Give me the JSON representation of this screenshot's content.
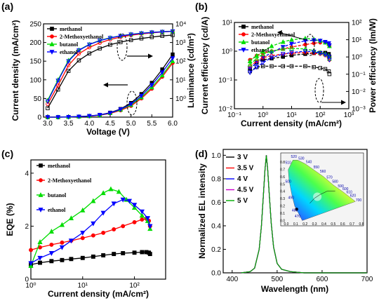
{
  "colors": {
    "methanol": "#000000",
    "2-Methoxyethanol": "#ff0000",
    "butanol": "#00dd00",
    "ethanol": "#0000ff",
    "v35": "#ff0000",
    "v45": "#cc00cc",
    "v5": "#00aa00"
  },
  "chart_data": [
    {
      "panel_label": "(a)",
      "type": "line",
      "xlabel": "Voltage (V)",
      "ylabel": "Current density (mA/cm²)",
      "y2label": "Luminance (cd/m²)",
      "xlim": [
        2.9,
        6.0
      ],
      "ylim": [
        0,
        250
      ],
      "y2lim": [
        0.1,
        10000
      ],
      "y2scale": "log",
      "xticks": [
        "3.0",
        "3.5",
        "4.0",
        "4.5",
        "5.0",
        "5.5",
        "6.0"
      ],
      "yticks": [
        "0",
        "50",
        "100",
        "150",
        "200",
        "250"
      ],
      "y2ticks": [
        "10⁰",
        "10¹",
        "10²",
        "10³",
        "10⁴"
      ],
      "legend": [
        "methanol",
        "2-Methoxyethanol",
        "butanol",
        "ethanol"
      ],
      "current_density": {
        "x": [
          3.0,
          3.25,
          3.5,
          3.75,
          4.0,
          4.25,
          4.5,
          4.75,
          5.0,
          5.25,
          5.5,
          5.75,
          6.0
        ],
        "series": [
          {
            "name": "methanol",
            "values": [
              0,
              0,
              0.5,
              1.5,
              3,
              6,
              12,
              22,
              38,
              62,
              92,
              128,
              168
            ]
          },
          {
            "name": "2-Methoxyethanol",
            "values": [
              0,
              0,
              0.5,
              1.5,
              2.5,
              5,
              10,
              18,
              30,
              50,
              76,
              108,
              145
            ]
          },
          {
            "name": "butanol",
            "values": [
              0,
              0,
              0.5,
              1.5,
              3,
              5.5,
              11,
              20,
              33,
              53,
              80,
              112,
              150
            ]
          },
          {
            "name": "ethanol",
            "values": [
              0,
              0,
              0.5,
              1.5,
              3,
              6,
              11,
              21,
              35,
              57,
              86,
              120,
              158
            ]
          }
        ]
      },
      "luminance": {
        "x": [
          3.0,
          3.25,
          3.5,
          3.75,
          4.0,
          4.25,
          4.5,
          4.75,
          5.0,
          5.25,
          5.5,
          5.75,
          6.0
        ],
        "series": [
          {
            "name": "methanol",
            "values": [
              0.3,
              3,
              30,
              110,
              260,
              480,
              760,
              1050,
              1350,
              1650,
              1950,
              2250,
              2500
            ]
          },
          {
            "name": "2-Methoxyethanol",
            "values": [
              0.5,
              5,
              60,
              250,
              550,
              950,
              1450,
              1950,
              2450,
              2900,
              3300,
              3650,
              3950
            ]
          },
          {
            "name": "butanol",
            "values": [
              0.8,
              10,
              110,
              400,
              800,
              1300,
              1800,
              2300,
              2750,
              3150,
              3500,
              3800,
              4050
            ]
          },
          {
            "name": "ethanol",
            "values": [
              0.7,
              9,
              100,
              380,
              780,
              1250,
              1750,
              2250,
              2700,
              3100,
              3450,
              3750,
              4000
            ]
          }
        ]
      }
    },
    {
      "panel_label": "(b)",
      "type": "line",
      "xscale": "log",
      "xlabel": "Current density (mA/cm²)",
      "ylabel": "Current efficiency (cd/A)",
      "y2label": "Power efficiency (lm/W)",
      "xlim": [
        0.1,
        1000
      ],
      "ylim": [
        0.01,
        10
      ],
      "y2lim": [
        0.001,
        100
      ],
      "xticks": [
        "10⁻¹",
        "10⁰",
        "10¹",
        "10²",
        "10³"
      ],
      "yticks": [
        "10⁻²",
        "10⁻¹",
        "10⁰",
        "10¹"
      ],
      "y2ticks": [
        "10⁻³",
        "10⁻²",
        "10⁻¹",
        "10⁰",
        "10¹",
        "10²"
      ],
      "legend": [
        "methanol",
        "2-Methoxyethanol",
        "butanol",
        "ethanol"
      ],
      "current_efficiency": [
        {
          "name": "methanol",
          "x": [
            0.35,
            0.6,
            1,
            2,
            5,
            10,
            30,
            60,
            100,
            150,
            200,
            210
          ],
          "values": [
            0.25,
            0.4,
            0.5,
            0.56,
            0.64,
            0.72,
            0.8,
            0.86,
            0.88,
            0.88,
            0.8,
            0.65
          ]
        },
        {
          "name": "2-Methoxyethanol",
          "x": [
            0.35,
            0.6,
            1,
            2,
            5,
            10,
            30,
            60,
            100,
            150,
            200,
            210
          ],
          "values": [
            0.5,
            0.7,
            0.85,
            1.0,
            1.2,
            1.4,
            1.7,
            1.9,
            2.0,
            2.0,
            1.8,
            1.5
          ]
        },
        {
          "name": "butanol",
          "x": [
            0.35,
            0.6,
            1,
            2,
            5,
            10,
            30,
            60,
            100,
            150,
            200,
            210
          ],
          "values": [
            0.45,
            0.7,
            1.0,
            1.5,
            2.1,
            2.5,
            2.8,
            2.6,
            2.3,
            2.0,
            1.8,
            1.5
          ]
        },
        {
          "name": "ethanol",
          "x": [
            0.35,
            0.6,
            1,
            2,
            5,
            10,
            30,
            60,
            100,
            150,
            200,
            210
          ],
          "values": [
            0.25,
            0.4,
            0.6,
            0.9,
            1.4,
            1.8,
            2.3,
            2.4,
            2.3,
            2.1,
            1.9,
            1.6
          ]
        }
      ],
      "power_efficiency": [
        {
          "name": "methanol",
          "x": [
            0.35,
            0.6,
            1,
            2,
            5,
            10,
            30,
            60,
            100,
            150,
            200,
            210
          ],
          "values": [
            0.2,
            0.28,
            0.3,
            0.3,
            0.3,
            0.3,
            0.3,
            0.28,
            0.26,
            0.24,
            0.2,
            0.16
          ]
        },
        {
          "name": "2-Methoxyethanol",
          "x": [
            0.35,
            0.6,
            1,
            2,
            5,
            10,
            30,
            60,
            100,
            150,
            200,
            210
          ],
          "values": [
            0.3,
            0.45,
            0.6,
            0.7,
            0.8,
            0.85,
            0.9,
            0.85,
            0.8,
            0.72,
            0.6,
            0.5
          ]
        },
        {
          "name": "butanol",
          "x": [
            0.35,
            0.6,
            1,
            2,
            5,
            10,
            30,
            60,
            100,
            150,
            200,
            210
          ],
          "values": [
            0.35,
            0.55,
            0.8,
            1.0,
            1.2,
            1.25,
            1.2,
            1.05,
            0.9,
            0.8,
            0.7,
            0.55
          ]
        },
        {
          "name": "ethanol",
          "x": [
            0.35,
            0.6,
            1,
            2,
            5,
            10,
            30,
            60,
            100,
            150,
            200,
            210
          ],
          "values": [
            0.18,
            0.28,
            0.4,
            0.6,
            0.8,
            0.9,
            1.0,
            0.95,
            0.85,
            0.75,
            0.65,
            0.5
          ]
        }
      ]
    },
    {
      "panel_label": "(c)",
      "type": "line",
      "xscale": "log",
      "xlabel": "Current density (mA/cm²)",
      "ylabel": "EQE (%)",
      "xlim": [
        1,
        400
      ],
      "ylim": [
        0,
        4.5
      ],
      "xticks": [
        "10⁰",
        "10¹",
        "10²"
      ],
      "yticks": [
        "0",
        "2",
        "4"
      ],
      "legend": [
        "methanol",
        "2-Methoxyethanol",
        "butanol",
        "ethanol"
      ],
      "series": [
        {
          "name": "methanol",
          "x": [
            1,
            1.5,
            2.5,
            4,
            6,
            10,
            16,
            25,
            40,
            60,
            100,
            140,
            170,
            190,
            200
          ],
          "values": [
            0.55,
            0.62,
            0.68,
            0.72,
            0.76,
            0.8,
            0.85,
            0.9,
            0.95,
            0.98,
            1.0,
            1.02,
            1.02,
            1.0,
            0.95
          ]
        },
        {
          "name": "2-Methoxyethanol",
          "x": [
            1,
            1.5,
            2.5,
            4,
            6,
            10,
            16,
            25,
            40,
            60,
            100,
            140,
            170,
            190,
            200
          ],
          "values": [
            1.1,
            1.2,
            1.3,
            1.38,
            1.45,
            1.55,
            1.65,
            1.75,
            1.88,
            2.0,
            2.15,
            2.25,
            2.28,
            2.2,
            2.0
          ]
        },
        {
          "name": "butanol",
          "x": [
            1,
            1.5,
            2.5,
            4,
            6,
            10,
            16,
            25,
            35,
            50,
            70,
            100,
            140,
            180,
            200
          ],
          "values": [
            0.5,
            1.4,
            1.8,
            2.05,
            2.3,
            2.6,
            2.95,
            3.25,
            3.4,
            3.3,
            3.0,
            2.7,
            2.4,
            2.2,
            1.9
          ]
        },
        {
          "name": "ethanol",
          "x": [
            1,
            1.5,
            2.5,
            4,
            6,
            10,
            16,
            25,
            40,
            60,
            80,
            100,
            140,
            180,
            200
          ],
          "values": [
            0.6,
            0.8,
            0.98,
            1.2,
            1.45,
            1.75,
            2.1,
            2.5,
            2.85,
            3.0,
            2.95,
            2.8,
            2.55,
            2.3,
            2.0
          ]
        }
      ]
    },
    {
      "panel_label": "(d)",
      "type": "line",
      "xlabel": "Wavelength (nm)",
      "ylabel": "Normalized EL intensity",
      "xlim": [
        380,
        700
      ],
      "ylim": [
        0,
        1.05
      ],
      "xticks": [
        "400",
        "500",
        "600",
        "700"
      ],
      "yticks": [
        "0.0",
        "0.2",
        "0.4",
        "0.6",
        "0.8",
        "1.0"
      ],
      "legend": [
        "3 V",
        "3.5 V",
        "4 V",
        "4.5 V",
        "5 V"
      ],
      "peak_nm": 476,
      "series": [
        {
          "name": "3 V",
          "x": [
            420,
            440,
            450,
            460,
            465,
            470,
            473,
            476,
            479,
            482,
            487,
            492,
            500,
            510,
            530,
            560,
            700
          ],
          "values": [
            0,
            0.01,
            0.04,
            0.2,
            0.4,
            0.7,
            0.88,
            1.0,
            0.88,
            0.7,
            0.42,
            0.22,
            0.08,
            0.03,
            0.01,
            0,
            0
          ]
        },
        {
          "name": "3.5 V",
          "x": [
            420,
            440,
            450,
            460,
            465,
            470,
            473,
            476,
            479,
            482,
            487,
            492,
            500,
            510,
            530,
            560,
            700
          ],
          "values": [
            0,
            0.01,
            0.04,
            0.2,
            0.4,
            0.7,
            0.88,
            1.0,
            0.88,
            0.7,
            0.42,
            0.22,
            0.08,
            0.03,
            0.01,
            0,
            0
          ]
        },
        {
          "name": "4 V",
          "x": [
            420,
            440,
            450,
            460,
            465,
            470,
            473,
            476,
            479,
            482,
            487,
            492,
            500,
            510,
            530,
            560,
            700
          ],
          "values": [
            0,
            0.01,
            0.04,
            0.2,
            0.4,
            0.7,
            0.88,
            1.0,
            0.88,
            0.7,
            0.42,
            0.22,
            0.08,
            0.03,
            0.01,
            0,
            0
          ]
        },
        {
          "name": "4.5 V",
          "x": [
            420,
            440,
            450,
            460,
            465,
            470,
            473,
            476,
            479,
            482,
            487,
            492,
            500,
            510,
            530,
            560,
            700
          ],
          "values": [
            0,
            0.01,
            0.04,
            0.2,
            0.4,
            0.7,
            0.88,
            1.0,
            0.88,
            0.7,
            0.42,
            0.22,
            0.08,
            0.03,
            0.01,
            0,
            0
          ]
        },
        {
          "name": "5 V",
          "x": [
            420,
            440,
            450,
            460,
            465,
            470,
            473,
            476,
            479,
            482,
            487,
            492,
            500,
            510,
            530,
            560,
            700
          ],
          "values": [
            0,
            0.01,
            0.04,
            0.2,
            0.4,
            0.7,
            0.88,
            1.0,
            0.88,
            0.7,
            0.42,
            0.22,
            0.08,
            0.03,
            0.01,
            0,
            0
          ]
        }
      ],
      "inset_cie_tick_labels": [
        "0.0",
        "0.1",
        "0.2",
        "0.3",
        "0.4",
        "0.5",
        "0.6",
        "0.7",
        "0.8"
      ],
      "inset_wavelength_labels": [
        "470",
        "480",
        "490",
        "500",
        "510",
        "520",
        "530",
        "540",
        "550",
        "560",
        "570",
        "580",
        "590",
        "600",
        "610",
        "620",
        "700"
      ]
    }
  ]
}
